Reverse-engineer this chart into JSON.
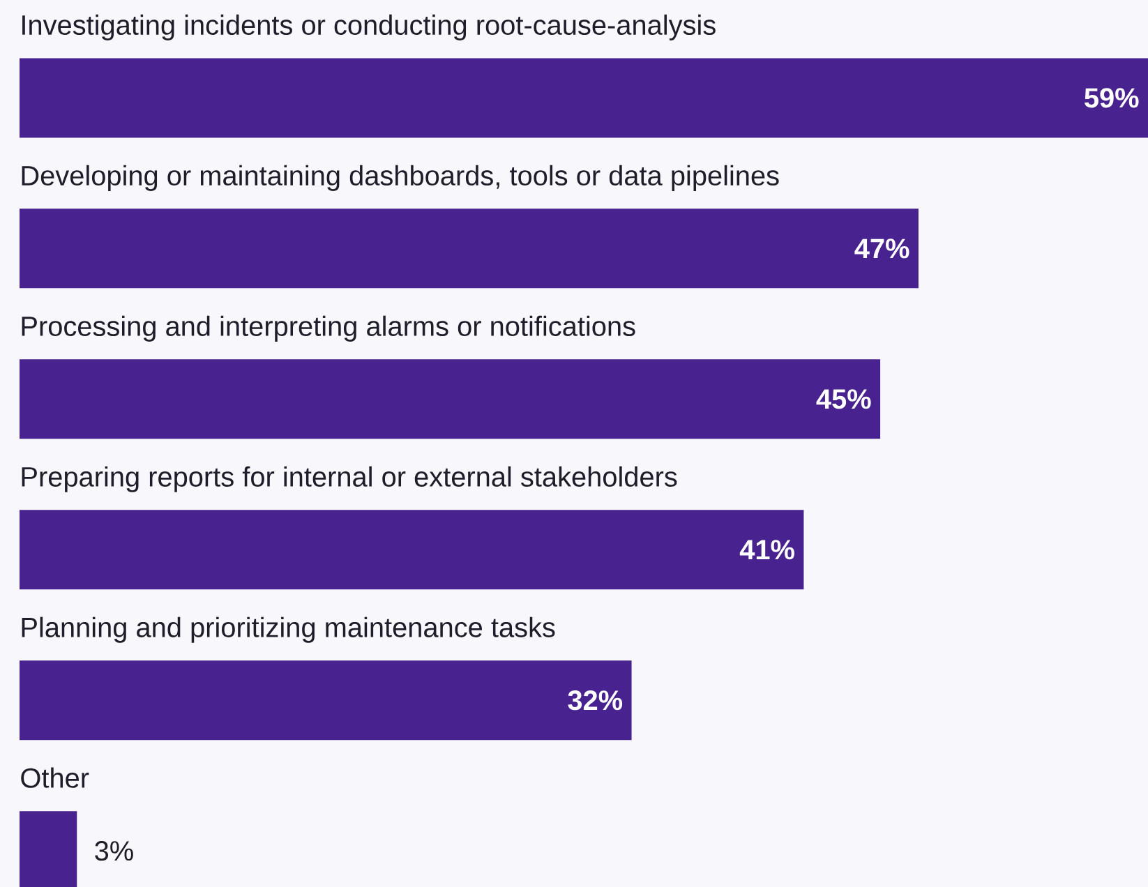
{
  "chart_data": {
    "type": "bar",
    "orientation": "horizontal",
    "categories": [
      "Investigating incidents or conducting root-cause-analysis",
      "Developing or maintaining dashboards, tools or data pipelines",
      "Processing and interpreting alarms or notifications",
      "Preparing reports for internal or external stakeholders",
      "Planning and prioritizing maintenance tasks",
      "Other"
    ],
    "values": [
      59,
      47,
      45,
      41,
      32,
      3
    ],
    "value_labels": [
      "59%",
      "47%",
      "45%",
      "41%",
      "32%",
      "3%"
    ],
    "color": "#48238f"
  }
}
